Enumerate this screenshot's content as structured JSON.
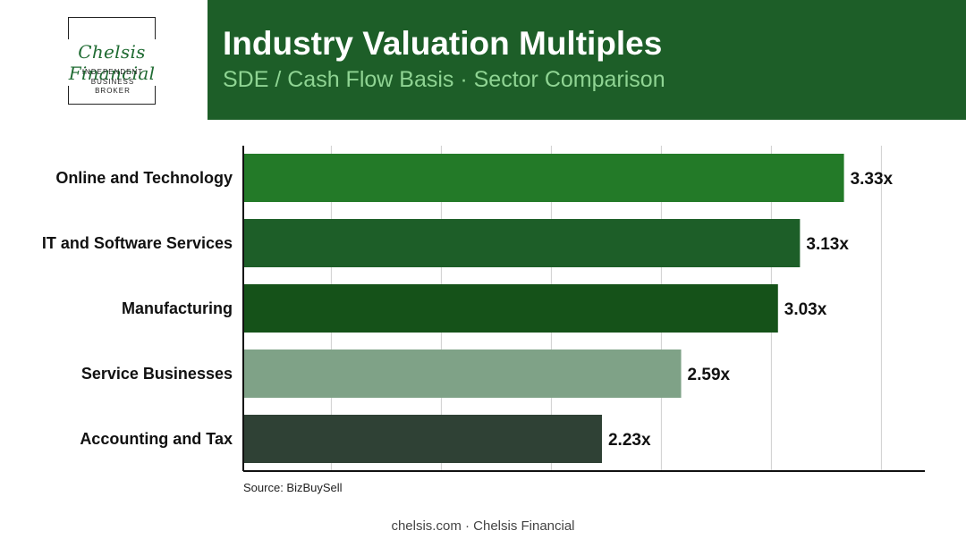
{
  "logo": {
    "name": "Chelsis Financial",
    "tagline": "INDEPENDENT\nBUSINESS\nBROKER"
  },
  "header": {
    "title": "Industry Valuation Multiples",
    "subtitle": "SDE / Cash Flow Basis · Sector Comparison"
  },
  "chart_data": {
    "type": "bar",
    "orientation": "horizontal",
    "categories": [
      "Online and Technology",
      "IT and Software Services",
      "Manufacturing",
      "Service Businesses",
      "Accounting and Tax"
    ],
    "values": [
      3.33,
      3.13,
      3.03,
      2.59,
      2.23
    ],
    "data_labels": [
      "3.33x",
      "3.13x",
      "3.03x",
      "2.59x",
      "2.23x"
    ],
    "colors": [
      "#237a28",
      "#1d5e28",
      "#155219",
      "#7fa287",
      "#2f4135"
    ],
    "xlim": [
      0.6,
      3.6
    ],
    "grid": true,
    "legend": "none"
  },
  "source": "Source: BizBuySell",
  "footer": "chelsis.com · Chelsis Financial"
}
